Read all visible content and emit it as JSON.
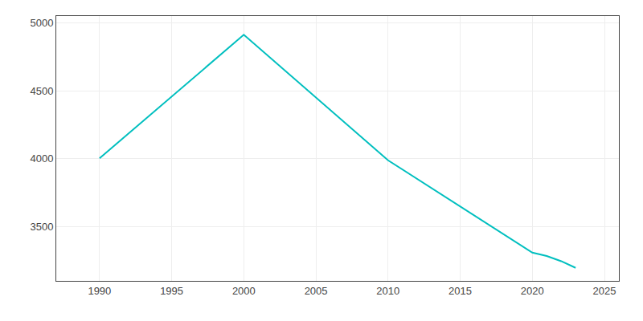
{
  "chart_data": {
    "type": "line",
    "x": [
      1990,
      2000,
      2010,
      2020,
      2021,
      2022,
      2023
    ],
    "values": [
      4002,
      4912,
      3988,
      3308,
      3283,
      3245,
      3196
    ],
    "color": "#00bfbf",
    "xlim": [
      1987,
      2026
    ],
    "ylim": [
      3100,
      5050
    ],
    "xticks": [
      1990,
      1995,
      2000,
      2005,
      2010,
      2015,
      2020,
      2025
    ],
    "yticks": [
      3500,
      4000,
      4500,
      5000
    ],
    "grid": true
  }
}
